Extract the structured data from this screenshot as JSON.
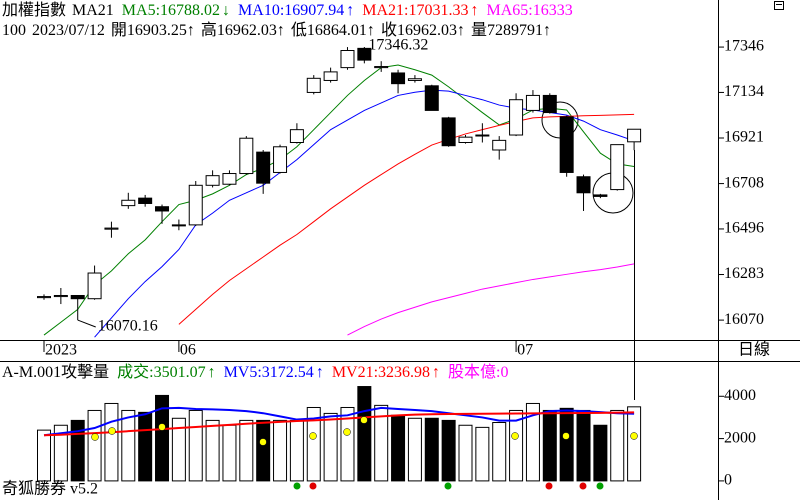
{
  "chart_data": [
    {
      "type": "candlestick",
      "title": "加權指數",
      "indicator": "MA21",
      "info": [
        "100",
        "2023/07/12",
        "開16903.25↑",
        "高16962.03↑",
        "低16864.01↑",
        "收16962.03↑",
        "量7289791↑"
      ],
      "categories": [
        "2023",
        null,
        null,
        null,
        null,
        null,
        null,
        null,
        "06",
        null,
        null,
        null,
        null,
        null,
        null,
        null,
        null,
        null,
        null,
        null,
        null,
        null,
        null,
        null,
        null,
        null,
        null,
        null,
        "07",
        null,
        null,
        null,
        null,
        null,
        null,
        null
      ],
      "open": [
        16175,
        16180,
        16185,
        16170,
        16495,
        16605,
        16640,
        16600,
        16515,
        16515,
        16700,
        16705,
        16755,
        16855,
        16760,
        16900,
        17134,
        17190,
        17250,
        17340,
        17250,
        17225,
        17190,
        17165,
        17015,
        16900,
        16932,
        16865,
        16935,
        17050,
        17120,
        17020,
        16740,
        16655,
        16680,
        16903.25
      ],
      "high": [
        16190,
        16220,
        16185,
        16325,
        16530,
        16665,
        16655,
        16610,
        16540,
        16720,
        16770,
        16770,
        16930,
        16865,
        16890,
        16990,
        17215,
        17250,
        17346,
        17346.32,
        17280,
        17240,
        17215,
        17170,
        17020,
        16935,
        16990,
        16930,
        17130,
        17145,
        17130,
        17025,
        16750,
        16660,
        16890,
        16962.03
      ],
      "low": [
        16165,
        16145,
        16070.16,
        16165,
        16455,
        16590,
        16600,
        16520,
        16490,
        16510,
        16690,
        16700,
        16750,
        16660,
        16755,
        16895,
        17125,
        17180,
        17240,
        17270,
        17230,
        17130,
        17180,
        17050,
        16880,
        16895,
        16900,
        16820,
        16930,
        17040,
        17035,
        16740,
        16580,
        16640,
        16675,
        16864.01
      ],
      "close": [
        16180,
        16185,
        16170,
        16290,
        16500,
        16630,
        16615,
        16580,
        16515,
        16700,
        16745,
        16755,
        16920,
        16710,
        16880,
        16960,
        17200,
        17230,
        17330,
        17285,
        17255,
        17175,
        17198,
        17050,
        16885,
        16925,
        16935,
        16910,
        17100,
        17120,
        17040,
        16760,
        16665,
        16648,
        16890,
        16962.03
      ],
      "series": [
        {
          "name": "MA5:16788.02",
          "trend": "↓",
          "color": "#008000",
          "values": [
            16000,
            16060,
            16120,
            16235,
            16300,
            16380,
            16445,
            16530,
            16610,
            16630,
            16660,
            16700,
            16750,
            16780,
            16820,
            16880,
            16960,
            17040,
            17120,
            17190,
            17250,
            17262,
            17240,
            17215,
            17160,
            17100,
            17040,
            16982,
            17010,
            17052,
            17060,
            17052,
            16950,
            16850,
            16800,
            16788.02
          ]
        },
        {
          "name": "MA10:16907.94",
          "trend": "↑",
          "color": "#0000ff",
          "values": [
            null,
            null,
            null,
            15990,
            16080,
            16170,
            16250,
            16320,
            16400,
            16515,
            16570,
            16630,
            16665,
            16700,
            16760,
            16820,
            16890,
            16960,
            17005,
            17050,
            17085,
            17120,
            17135,
            17145,
            17140,
            17120,
            17100,
            17075,
            17060,
            17052,
            17040,
            17028,
            17000,
            16960,
            16935,
            16907.94
          ]
        },
        {
          "name": "MA21:17031.33",
          "trend": "↑",
          "color": "#ff0000",
          "values": [
            null,
            null,
            null,
            null,
            null,
            null,
            null,
            null,
            16050,
            16120,
            16190,
            16255,
            16310,
            16365,
            16420,
            16470,
            16530,
            16590,
            16645,
            16700,
            16750,
            16800,
            16845,
            16888,
            16915,
            16940,
            16960,
            16980,
            16998,
            17015,
            17020,
            17022,
            17025,
            17027,
            17029,
            17031.33
          ]
        },
        {
          "name": "MA65:16333",
          "color": "#ff00ff",
          "values": [
            null,
            null,
            null,
            null,
            null,
            null,
            null,
            null,
            null,
            null,
            null,
            null,
            null,
            null,
            null,
            null,
            null,
            null,
            16000,
            16040,
            16075,
            16105,
            16130,
            16155,
            16175,
            16195,
            16215,
            16230,
            16245,
            16260,
            16272,
            16284,
            16296,
            16306,
            16318,
            16333
          ]
        }
      ],
      "annotations": [
        {
          "text": "17346.32"
        },
        {
          "text": "16070.16"
        }
      ],
      "period": "日線",
      "ylim": [
        15977,
        17566
      ],
      "yticks": [
        17346,
        17134,
        16921,
        16708,
        16496,
        16283,
        16070
      ]
    },
    {
      "type": "bar",
      "title": "A-M.001攻擊量",
      "legend": [
        {
          "name": "成交:3501.07",
          "trend": "↑",
          "color": "#008000"
        },
        {
          "name": "MV5:3172.54",
          "trend": "↑",
          "color": "#0000ff"
        },
        {
          "name": "MV21:3236.98",
          "trend": "↑",
          "color": "#ff0000"
        },
        {
          "name": "股本億:0",
          "color": "#ff00ff"
        }
      ],
      "values": [
        2400,
        2630,
        2860,
        3330,
        3660,
        3330,
        3240,
        4040,
        2960,
        3330,
        2860,
        2630,
        2860,
        2860,
        2860,
        2860,
        3470,
        3190,
        3470,
        4460,
        3570,
        3100,
        2960,
        2960,
        2860,
        2630,
        2530,
        2760,
        3330,
        3660,
        3330,
        3430,
        3330,
        2630,
        3330,
        3501.07
      ],
      "series": [
        {
          "name": "MV5",
          "color": "#0000ff",
          "values": [
            2160,
            2250,
            2350,
            2500,
            2800,
            3000,
            3150,
            3430,
            3450,
            3400,
            3380,
            3350,
            3300,
            3200,
            3050,
            2900,
            2950,
            3050,
            3100,
            3300,
            3450,
            3400,
            3350,
            3300,
            3200,
            3100,
            3000,
            2850,
            2850,
            3100,
            3300,
            3330,
            3300,
            3250,
            3200,
            3172.54
          ]
        },
        {
          "name": "MV21",
          "color": "#ff0000",
          "values": [
            2160,
            2180,
            2220,
            2260,
            2300,
            2350,
            2400,
            2450,
            2500,
            2550,
            2600,
            2650,
            2700,
            2750,
            2790,
            2830,
            2860,
            2900,
            2950,
            3000,
            3050,
            3100,
            3130,
            3150,
            3160,
            3170,
            3175,
            3180,
            3185,
            3190,
            3200,
            3205,
            3210,
            3215,
            3225,
            3236.98
          ]
        }
      ],
      "footer": "奇狐勝券 v5.2",
      "ylim": [
        -430,
        5620
      ],
      "yticks": [
        4000,
        2000,
        0
      ]
    }
  ]
}
